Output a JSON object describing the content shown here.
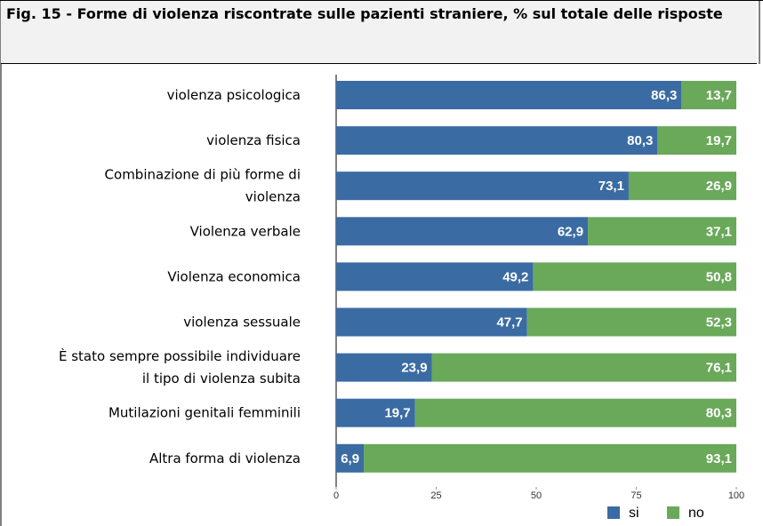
{
  "chart_data": {
    "type": "stacked_bar_horizontal",
    "title": "Fig. 15 - Forme di violenza riscontrate sulle pazienti straniere, % sul totale delle risposte",
    "categories": [
      "violenza psicologica",
      "violenza fisica",
      "Combinazione di più forme di\nviolenza",
      "Violenza verbale",
      "Violenza economica",
      "violenza sessuale",
      "È stato sempre possibile individuare\nil tipo di violenza subita",
      "Mutilazioni genitali femminili",
      "Altra forma di violenza"
    ],
    "series": [
      {
        "name": "si",
        "color": "#3b6ba3",
        "values": [
          86.3,
          80.3,
          73.1,
          62.9,
          49.2,
          47.7,
          23.9,
          19.7,
          6.9
        ],
        "value_labels": [
          "86,3",
          "80,3",
          "73,1",
          "62,9",
          "49,2",
          "47,7",
          "23,9",
          "19,7",
          "6,9"
        ]
      },
      {
        "name": "no",
        "color": "#6aa85a",
        "values": [
          13.7,
          19.7,
          26.9,
          37.1,
          50.8,
          52.3,
          76.1,
          80.3,
          93.1
        ],
        "value_labels": [
          "13,7",
          "19,7",
          "26,9",
          "37,1",
          "50,8",
          "52,3",
          "76,1",
          "80,3",
          "93,1"
        ]
      }
    ],
    "xlim": [
      0,
      100
    ],
    "xticks": [
      0,
      25,
      50,
      75,
      100
    ],
    "legend": "bottom-right"
  }
}
